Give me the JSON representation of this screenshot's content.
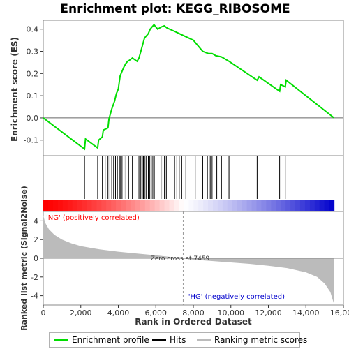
{
  "chart_data": {
    "type": "line",
    "title": "Enrichment plot: KEGG_RIBOSOME",
    "x_axis": {
      "label": "Rank in Ordered Dataset",
      "range": [
        0,
        16000
      ],
      "ticks": [
        0,
        2000,
        4000,
        6000,
        8000,
        10000,
        12000,
        14000,
        16000
      ],
      "tick_labels": [
        "0",
        "2,000",
        "4,000",
        "6,000",
        "8,000",
        "10,000",
        "12,000",
        "14,000",
        "16,000"
      ]
    },
    "enrichment_panel": {
      "ylabel": "Enrichment score (ES)",
      "ylim": [
        -0.17,
        0.44
      ],
      "ticks": [
        -0.1,
        0.0,
        0.1,
        0.2,
        0.3,
        0.4
      ],
      "tick_labels": [
        "-0.1",
        "0.0",
        "0.1",
        "0.2",
        "0.3",
        "0.4"
      ],
      "series_color": "#00dd00",
      "profile": [
        [
          0,
          0.0
        ],
        [
          2200,
          -0.14
        ],
        [
          2250,
          -0.095
        ],
        [
          2900,
          -0.135
        ],
        [
          2950,
          -0.1
        ],
        [
          3150,
          -0.085
        ],
        [
          3200,
          -0.055
        ],
        [
          3450,
          -0.045
        ],
        [
          3500,
          -0.005
        ],
        [
          3650,
          0.04
        ],
        [
          3800,
          0.075
        ],
        [
          3900,
          0.11
        ],
        [
          4000,
          0.13
        ],
        [
          4050,
          0.16
        ],
        [
          4100,
          0.19
        ],
        [
          4200,
          0.21
        ],
        [
          4300,
          0.23
        ],
        [
          4400,
          0.245
        ],
        [
          4500,
          0.255
        ],
        [
          4600,
          0.26
        ],
        [
          4750,
          0.27
        ],
        [
          5000,
          0.255
        ],
        [
          5100,
          0.27
        ],
        [
          5200,
          0.3
        ],
        [
          5300,
          0.33
        ],
        [
          5400,
          0.36
        ],
        [
          5500,
          0.37
        ],
        [
          5600,
          0.38
        ],
        [
          5700,
          0.4
        ],
        [
          5800,
          0.41
        ],
        [
          5900,
          0.42
        ],
        [
          6100,
          0.4
        ],
        [
          6300,
          0.41
        ],
        [
          6450,
          0.415
        ],
        [
          6600,
          0.405
        ],
        [
          7000,
          0.39
        ],
        [
          7500,
          0.37
        ],
        [
          8000,
          0.35
        ],
        [
          8500,
          0.3
        ],
        [
          8800,
          0.29
        ],
        [
          9000,
          0.29
        ],
        [
          9200,
          0.28
        ],
        [
          9500,
          0.275
        ],
        [
          9900,
          0.255
        ],
        [
          11400,
          0.17
        ],
        [
          11500,
          0.185
        ],
        [
          12600,
          0.12
        ],
        [
          12650,
          0.15
        ],
        [
          12900,
          0.14
        ],
        [
          12950,
          0.17
        ],
        [
          15500,
          0.0
        ]
      ]
    },
    "hits": [
      2200,
      2900,
      3150,
      3300,
      3450,
      3550,
      3650,
      3750,
      3850,
      3950,
      4050,
      4100,
      4200,
      4300,
      4400,
      4550,
      4750,
      5100,
      5200,
      5280,
      5340,
      5400,
      5480,
      5600,
      5680,
      5760,
      5840,
      5920,
      6280,
      6380,
      6460,
      6560,
      7000,
      7120,
      7250,
      7380,
      7600,
      8100,
      8500,
      8750,
      8900,
      9000,
      9250,
      9500,
      9900,
      11400,
      12600,
      12900
    ],
    "ranked_metric_panel": {
      "ylabel": "Ranked list metric (Signal2Noise)",
      "ylim": [
        -5,
        5
      ],
      "ticks": [
        -4,
        -2,
        0,
        2,
        4
      ],
      "tick_labels": [
        "-4",
        "-2",
        "0",
        "2",
        "4"
      ],
      "zero_cross_rank": 7459,
      "zero_cross_label": "Zero cross at 7459",
      "positive_label": "'NG' (positively correlated)",
      "negative_label": "'HG' (negatively correlated)",
      "positive_color": "#ff0000",
      "negative_color": "#0000cc",
      "fill_color": "#bbbbbb",
      "metric_curve": [
        [
          0,
          4.6
        ],
        [
          100,
          3.8
        ],
        [
          300,
          3.1
        ],
        [
          600,
          2.5
        ],
        [
          1000,
          2.0
        ],
        [
          1500,
          1.6
        ],
        [
          2000,
          1.3
        ],
        [
          3000,
          0.95
        ],
        [
          4000,
          0.7
        ],
        [
          5000,
          0.5
        ],
        [
          6000,
          0.32
        ],
        [
          7000,
          0.1
        ],
        [
          7459,
          0.0
        ],
        [
          8000,
          -0.15
        ],
        [
          9000,
          -0.3
        ],
        [
          10000,
          -0.45
        ],
        [
          11000,
          -0.6
        ],
        [
          12000,
          -0.8
        ],
        [
          13000,
          -1.05
        ],
        [
          14000,
          -1.5
        ],
        [
          14600,
          -2.0
        ],
        [
          15000,
          -2.7
        ],
        [
          15300,
          -3.6
        ],
        [
          15500,
          -4.9
        ]
      ],
      "max_rank": 15500
    },
    "legend": {
      "placement": "bottom",
      "entries": [
        {
          "label": "Enrichment profile",
          "kind": "line",
          "color": "#00dd00"
        },
        {
          "label": "Hits",
          "kind": "line",
          "color": "#000000"
        },
        {
          "label": "Ranking metric scores",
          "kind": "line",
          "color": "#bbbbbb"
        }
      ]
    }
  }
}
